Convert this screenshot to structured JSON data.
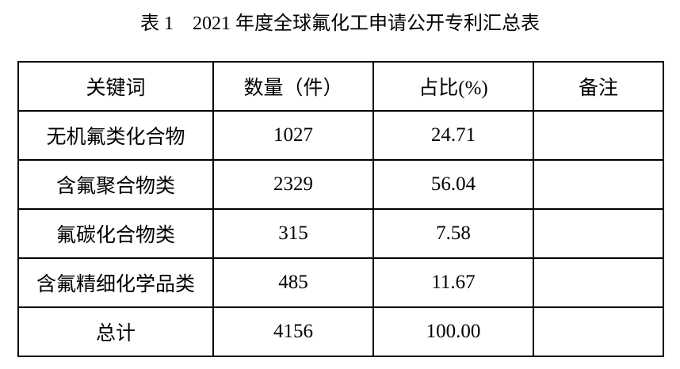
{
  "title": "表 1　2021 年度全球氟化工申请公开专利汇总表",
  "table": {
    "header": [
      "关键词",
      "数量（件）",
      "占比(%)",
      "备注"
    ],
    "rows": [
      [
        "无机氟类化合物",
        "1027",
        "24.71"
      ],
      [
        "含氟聚合物类",
        "2329",
        "56.04"
      ],
      [
        "氟碳化合物类",
        "315",
        "7.58"
      ],
      [
        "含氟精细化学品类",
        "485",
        "11.67"
      ],
      [
        "总计",
        "4156",
        "100.00"
      ]
    ]
  }
}
